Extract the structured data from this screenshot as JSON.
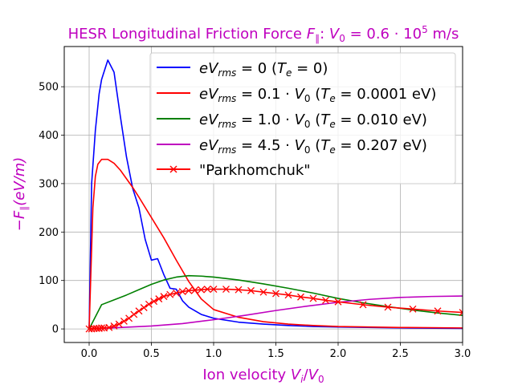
{
  "chart_data": {
    "type": "line",
    "title": "HESR Longitudinal Friction Force F∥: V₀ = 0.6·10⁵ m/s",
    "xlabel": "Ion velocity Vᵢ/V₀",
    "ylabel": "−F∥ (eV/m)",
    "xlim": [
      -0.2,
      3.0
    ],
    "ylim": [
      -28,
      583
    ],
    "xticks": [
      0.0,
      0.5,
      1.0,
      1.5,
      2.0,
      2.5,
      3.0
    ],
    "xtick_labels": [
      "0.0",
      "0.5",
      "1.0",
      "1.5",
      "2.0",
      "2.5",
      "3.0"
    ],
    "yticks": [
      0,
      100,
      200,
      300,
      400,
      500
    ],
    "ytick_labels": [
      "0",
      "100",
      "200",
      "300",
      "400",
      "500"
    ],
    "grid": true,
    "legend_position": "top-right",
    "series": [
      {
        "name": "eV_rms = 0 (T_e = 0)",
        "color": "#0000ff",
        "marker": "none",
        "x": [
          0.0,
          0.02,
          0.05,
          0.08,
          0.1,
          0.15,
          0.2,
          0.25,
          0.3,
          0.35,
          0.4,
          0.45,
          0.5,
          0.55,
          0.6,
          0.65,
          0.7,
          0.75,
          0.8,
          0.9,
          1.0,
          1.2,
          1.4,
          1.6,
          1.8,
          2.0,
          2.5,
          3.0
        ],
        "y": [
          0,
          300,
          410,
          485,
          515,
          555,
          530,
          440,
          355,
          290,
          250,
          185,
          142,
          145,
          112,
          84,
          82,
          58,
          45,
          30,
          22,
          14,
          10,
          7,
          5,
          4,
          2,
          1
        ]
      },
      {
        "name": "eV_rms = 0.1·V₀ (T_e = 0.0001 eV)",
        "color": "#ff0000",
        "marker": "none",
        "x": [
          0.0,
          0.03,
          0.05,
          0.07,
          0.1,
          0.15,
          0.2,
          0.25,
          0.3,
          0.35,
          0.4,
          0.5,
          0.6,
          0.7,
          0.8,
          0.9,
          1.0,
          1.2,
          1.4,
          1.6,
          1.8,
          2.0,
          2.5,
          3.0
        ],
        "y": [
          0,
          250,
          315,
          340,
          350,
          350,
          342,
          328,
          310,
          292,
          272,
          230,
          188,
          142,
          98,
          62,
          40,
          24,
          15,
          10,
          7,
          5,
          3,
          2
        ]
      },
      {
        "name": "eV_rms = 1.0·V₀ (T_e = 0.010 eV)",
        "color": "#008000",
        "marker": "none",
        "x": [
          0.0,
          0.1,
          0.2,
          0.3,
          0.4,
          0.5,
          0.6,
          0.7,
          0.8,
          0.9,
          1.0,
          1.2,
          1.4,
          1.6,
          1.8,
          2.0,
          2.2,
          2.4,
          2.6,
          2.8,
          3.0
        ],
        "y": [
          0,
          50,
          60,
          70,
          81,
          92,
          101,
          107,
          110,
          109,
          107,
          101,
          93,
          84,
          74,
          63,
          54,
          46,
          39,
          33,
          28
        ]
      },
      {
        "name": "eV_rms = 4.5·V₀ (T_e = 0.207 eV)",
        "color": "#bf00bf",
        "marker": "none",
        "x": [
          0.0,
          0.25,
          0.5,
          0.75,
          1.0,
          1.25,
          1.5,
          1.75,
          2.0,
          2.25,
          2.5,
          2.75,
          3.0
        ],
        "y": [
          0,
          3,
          6,
          11,
          19,
          28,
          38,
          47,
          55,
          61,
          65,
          67,
          68
        ]
      },
      {
        "name": "\"Parkhomchuk\"",
        "color": "#ff0000",
        "marker": "x",
        "x": [
          0.0,
          0.02,
          0.04,
          0.06,
          0.08,
          0.1,
          0.12,
          0.16,
          0.2,
          0.24,
          0.28,
          0.32,
          0.36,
          0.4,
          0.44,
          0.48,
          0.52,
          0.56,
          0.6,
          0.65,
          0.7,
          0.75,
          0.8,
          0.85,
          0.9,
          0.95,
          1.0,
          1.1,
          1.2,
          1.3,
          1.4,
          1.5,
          1.6,
          1.7,
          1.8,
          1.9,
          2.0,
          2.2,
          2.4,
          2.6,
          2.8,
          3.0
        ],
        "y": [
          0,
          0,
          1,
          1,
          1,
          2,
          2,
          3,
          6,
          10,
          16,
          22,
          30,
          37,
          44,
          51,
          57,
          62,
          67,
          71,
          74,
          77,
          79,
          80,
          81,
          82,
          82,
          82,
          81,
          79,
          76,
          73,
          70,
          66,
          63,
          59,
          56,
          50,
          45,
          41,
          37,
          34
        ]
      }
    ]
  }
}
